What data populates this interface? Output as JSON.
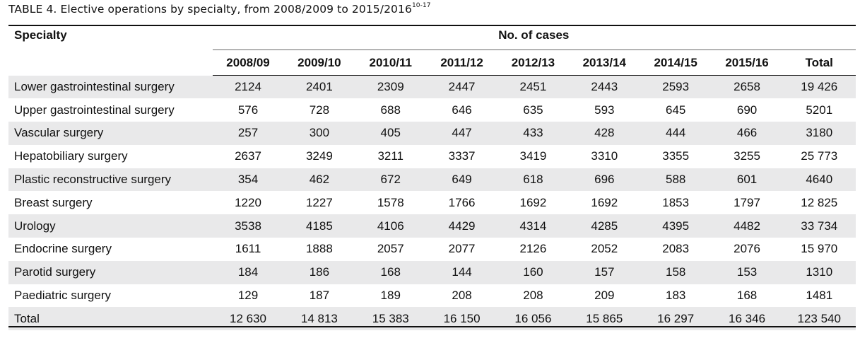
{
  "caption": {
    "text": "TABLE 4.  Elective operations by specialty, from 2008/2009 to 2015/2016",
    "refs": "10-17"
  },
  "table": {
    "header_specialty": "Specialty",
    "header_group": "No. of cases",
    "years": [
      "2008/09",
      "2009/10",
      "2010/11",
      "2011/12",
      "2012/13",
      "2013/14",
      "2014/15",
      "2015/16",
      "Total"
    ],
    "rows": [
      {
        "specialty": "Lower gastrointestinal surgery",
        "values": [
          "2124",
          "2401",
          "2309",
          "2447",
          "2451",
          "2443",
          "2593",
          "2658",
          "19 426"
        ]
      },
      {
        "specialty": "Upper gastrointestinal surgery",
        "values": [
          "576",
          "728",
          "688",
          "646",
          "635",
          "593",
          "645",
          "690",
          "5201"
        ]
      },
      {
        "specialty": "Vascular surgery",
        "values": [
          "257",
          "300",
          "405",
          "447",
          "433",
          "428",
          "444",
          "466",
          "3180"
        ]
      },
      {
        "specialty": "Hepatobiliary surgery",
        "values": [
          "2637",
          "3249",
          "3211",
          "3337",
          "3419",
          "3310",
          "3355",
          "3255",
          "25 773"
        ]
      },
      {
        "specialty": "Plastic reconstructive surgery",
        "values": [
          "354",
          "462",
          "672",
          "649",
          "618",
          "696",
          "588",
          "601",
          "4640"
        ]
      },
      {
        "specialty": "Breast surgery",
        "values": [
          "1220",
          "1227",
          "1578",
          "1766",
          "1692",
          "1692",
          "1853",
          "1797",
          "12 825"
        ]
      },
      {
        "specialty": "Urology",
        "values": [
          "3538",
          "4185",
          "4106",
          "4429",
          "4314",
          "4285",
          "4395",
          "4482",
          "33 734"
        ]
      },
      {
        "specialty": "Endocrine surgery",
        "values": [
          "1611",
          "1888",
          "2057",
          "2077",
          "2126",
          "2052",
          "2083",
          "2076",
          "15 970"
        ]
      },
      {
        "specialty": "Parotid surgery",
        "values": [
          "184",
          "186",
          "168",
          "144",
          "160",
          "157",
          "158",
          "153",
          "1310"
        ]
      },
      {
        "specialty": "Paediatric surgery",
        "values": [
          "129",
          "187",
          "189",
          "208",
          "208",
          "209",
          "183",
          "168",
          "1481"
        ]
      },
      {
        "specialty": "Total",
        "values": [
          "12 630",
          "14 813",
          "15 383",
          "16 150",
          "16 056",
          "15 865",
          "16 297",
          "16 346",
          "123 540"
        ]
      }
    ]
  },
  "colors": {
    "row_shade": "#e9e9ea",
    "text": "#111111"
  }
}
